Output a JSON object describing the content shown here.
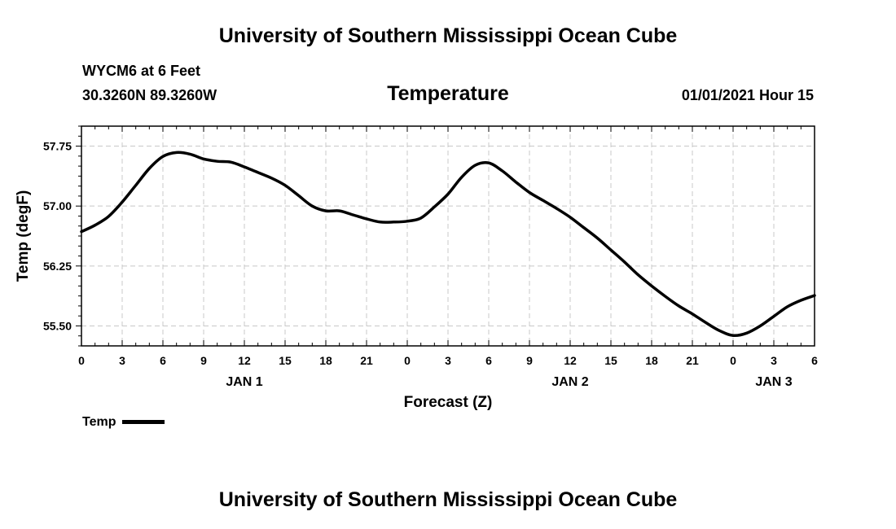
{
  "header": {
    "org_title": "University of Southern Mississippi Ocean Cube",
    "station": "WYCM6 at 6 Feet",
    "coordinates": "30.3260N 89.3260W",
    "chart_title": "Temperature",
    "datetime": "01/01/2021 Hour 15"
  },
  "footer": {
    "org_title": "University of Southern Mississippi Ocean Cube"
  },
  "legend": {
    "label": "Temp"
  },
  "chart_data": {
    "type": "line",
    "title": "Temperature",
    "xlabel": "Forecast (Z)",
    "ylabel": "Temp (degF)",
    "xlim": [
      0,
      54
    ],
    "ylim": [
      55.25,
      58.0
    ],
    "grid": true,
    "line_color": "#000000",
    "x_ticks": [
      0,
      3,
      6,
      9,
      12,
      15,
      18,
      21,
      24,
      27,
      30,
      33,
      36,
      39,
      42,
      45,
      48,
      51,
      54
    ],
    "x_tick_labels": [
      "0",
      "3",
      "6",
      "9",
      "12",
      "15",
      "18",
      "21",
      "0",
      "3",
      "6",
      "9",
      "12",
      "15",
      "18",
      "21",
      "0",
      "3",
      "6"
    ],
    "day_labels": [
      {
        "x": 12,
        "label": "JAN 1"
      },
      {
        "x": 36,
        "label": "JAN 2"
      },
      {
        "x": 51,
        "label": "JAN 3"
      }
    ],
    "y_ticks": [
      55.5,
      56.25,
      57.0,
      57.75
    ],
    "y_tick_labels": [
      "55.50",
      "56.25",
      "57.00",
      "57.75"
    ],
    "series": [
      {
        "name": "Temp",
        "x": [
          0,
          1,
          2,
          3,
          4,
          5,
          6,
          7,
          8,
          9,
          10,
          11,
          12,
          13,
          14,
          15,
          16,
          17,
          18,
          19,
          20,
          21,
          22,
          23,
          24,
          25,
          26,
          27,
          28,
          29,
          30,
          31,
          32,
          33,
          34,
          35,
          36,
          37,
          38,
          39,
          40,
          41,
          42,
          43,
          44,
          45,
          46,
          47,
          48,
          49,
          50,
          51,
          52,
          53,
          54
        ],
        "values": [
          56.68,
          56.76,
          56.87,
          57.05,
          57.26,
          57.47,
          57.62,
          57.67,
          57.65,
          57.59,
          57.56,
          57.55,
          57.49,
          57.42,
          57.35,
          57.26,
          57.13,
          57.0,
          56.94,
          56.94,
          56.89,
          56.84,
          56.8,
          56.8,
          56.81,
          56.85,
          56.99,
          57.15,
          57.36,
          57.51,
          57.54,
          57.44,
          57.3,
          57.17,
          57.07,
          56.97,
          56.86,
          56.73,
          56.6,
          56.45,
          56.3,
          56.14,
          56.0,
          55.87,
          55.75,
          55.65,
          55.54,
          55.44,
          55.38,
          55.41,
          55.5,
          55.62,
          55.74,
          55.82,
          55.88
        ]
      }
    ]
  }
}
